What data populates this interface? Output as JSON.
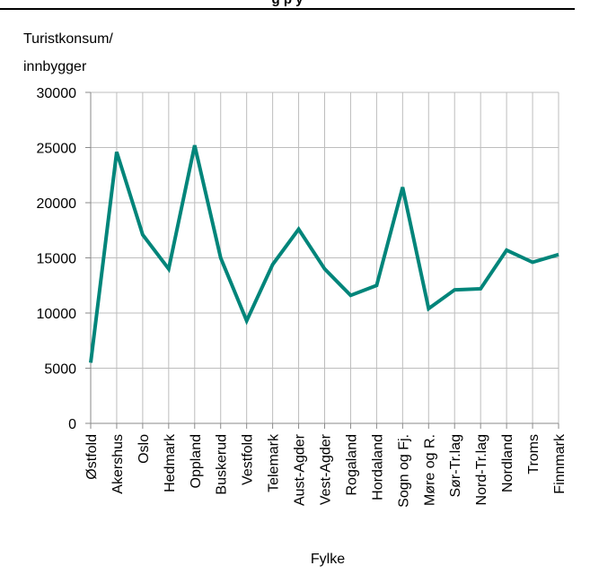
{
  "title_fragment": "g     p    y",
  "chart_data": {
    "type": "line",
    "ylabel_lines": [
      "Turistkonsum/",
      "innbygger"
    ],
    "xlabel": "Fylke",
    "ylim": [
      0,
      30000
    ],
    "yticks": [
      0,
      5000,
      10000,
      15000,
      20000,
      25000,
      30000
    ],
    "grid": true,
    "line_color": "#00857a",
    "categories": [
      "Østfold",
      "Akershus",
      "Oslo",
      "Hedmark",
      "Oppland",
      "Buskerud",
      "Vestfold",
      "Telemark",
      "Aust-Agder",
      "Vest-Agder",
      "Rogaland",
      "Hordaland",
      "Sogn og Fj.",
      "Møre og R.",
      "Sør-Tr.lag",
      "Nord-Tr.lag",
      "Nordland",
      "Troms",
      "Finnmark"
    ],
    "values": [
      5500,
      24600,
      17100,
      14000,
      25200,
      15000,
      9300,
      14400,
      17600,
      14000,
      11600,
      12500,
      21400,
      10400,
      12100,
      12200,
      15700,
      14600,
      15300
    ]
  }
}
